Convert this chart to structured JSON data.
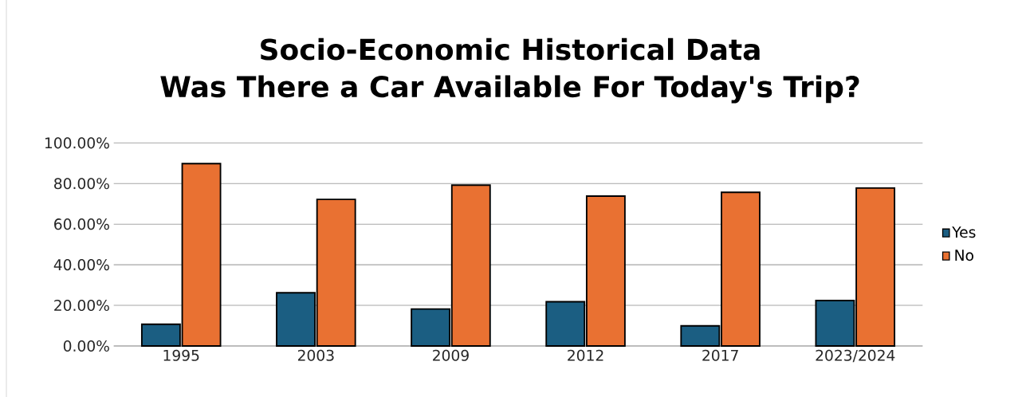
{
  "chart_data": {
    "type": "bar",
    "title": "Socio-Economic Historical Data\nWas There a Car Available For Today's Trip?",
    "categories": [
      "1995",
      "2003",
      "2009",
      "2012",
      "2017",
      "2023/2024"
    ],
    "series": [
      {
        "name": "Yes",
        "color": "#1b5e82",
        "values": [
          10.7,
          26.2,
          18.2,
          21.8,
          9.9,
          22.4
        ]
      },
      {
        "name": "No",
        "color": "#e97132",
        "values": [
          89.8,
          72.2,
          79.2,
          73.8,
          75.7,
          77.8
        ]
      }
    ],
    "ylim": [
      0,
      100
    ],
    "yticks": [
      {
        "value": 0,
        "label": "0.00%"
      },
      {
        "value": 20,
        "label": "20.00%"
      },
      {
        "value": 40,
        "label": "40.00%"
      },
      {
        "value": 60,
        "label": "60.00%"
      },
      {
        "value": 80,
        "label": "80.00%"
      },
      {
        "value": 100,
        "label": "100.00%"
      }
    ],
    "grid": "y",
    "legend": "right"
  }
}
